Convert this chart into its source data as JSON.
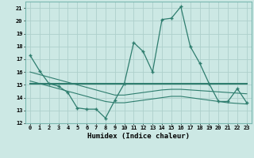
{
  "xlabel": "Humidex (Indice chaleur)",
  "x": [
    0,
    1,
    2,
    3,
    4,
    5,
    6,
    7,
    8,
    9,
    10,
    11,
    12,
    13,
    14,
    15,
    16,
    17,
    18,
    19,
    20,
    21,
    22,
    23
  ],
  "line1_y": [
    17.3,
    16.1,
    15.1,
    14.9,
    14.4,
    13.2,
    13.1,
    13.1,
    12.4,
    13.8,
    15.1,
    18.3,
    17.6,
    16.0,
    20.1,
    20.2,
    21.1,
    18.0,
    16.7,
    15.1,
    13.7,
    13.7,
    14.7,
    13.6
  ],
  "line2_y": [
    15.1,
    15.1,
    15.1,
    15.1,
    15.1,
    15.1,
    15.1,
    15.1,
    15.1,
    15.1,
    15.1,
    15.1,
    15.1,
    15.1,
    15.1,
    15.1,
    15.1,
    15.1,
    15.1,
    15.1,
    15.1,
    15.1,
    15.1,
    15.1
  ],
  "line3_y": [
    16.0,
    15.8,
    15.6,
    15.4,
    15.2,
    15.0,
    14.8,
    14.6,
    14.4,
    14.2,
    14.2,
    14.3,
    14.4,
    14.5,
    14.6,
    14.65,
    14.65,
    14.6,
    14.55,
    14.5,
    14.45,
    14.4,
    14.35,
    14.3
  ],
  "line4_y": [
    15.3,
    15.1,
    14.9,
    14.7,
    14.5,
    14.3,
    14.1,
    13.9,
    13.7,
    13.6,
    13.6,
    13.7,
    13.8,
    13.9,
    14.0,
    14.1,
    14.1,
    14.0,
    13.9,
    13.8,
    13.7,
    13.6,
    13.55,
    13.5
  ],
  "line_color": "#2e7d6e",
  "bg_color": "#cce8e4",
  "grid_color": "#aed0cb",
  "ylim": [
    12,
    21.5
  ],
  "yticks": [
    12,
    13,
    14,
    15,
    16,
    17,
    18,
    19,
    20,
    21
  ],
  "xticks": [
    0,
    1,
    2,
    3,
    4,
    5,
    6,
    7,
    8,
    9,
    10,
    11,
    12,
    13,
    14,
    15,
    16,
    17,
    18,
    19,
    20,
    21,
    22,
    23
  ]
}
